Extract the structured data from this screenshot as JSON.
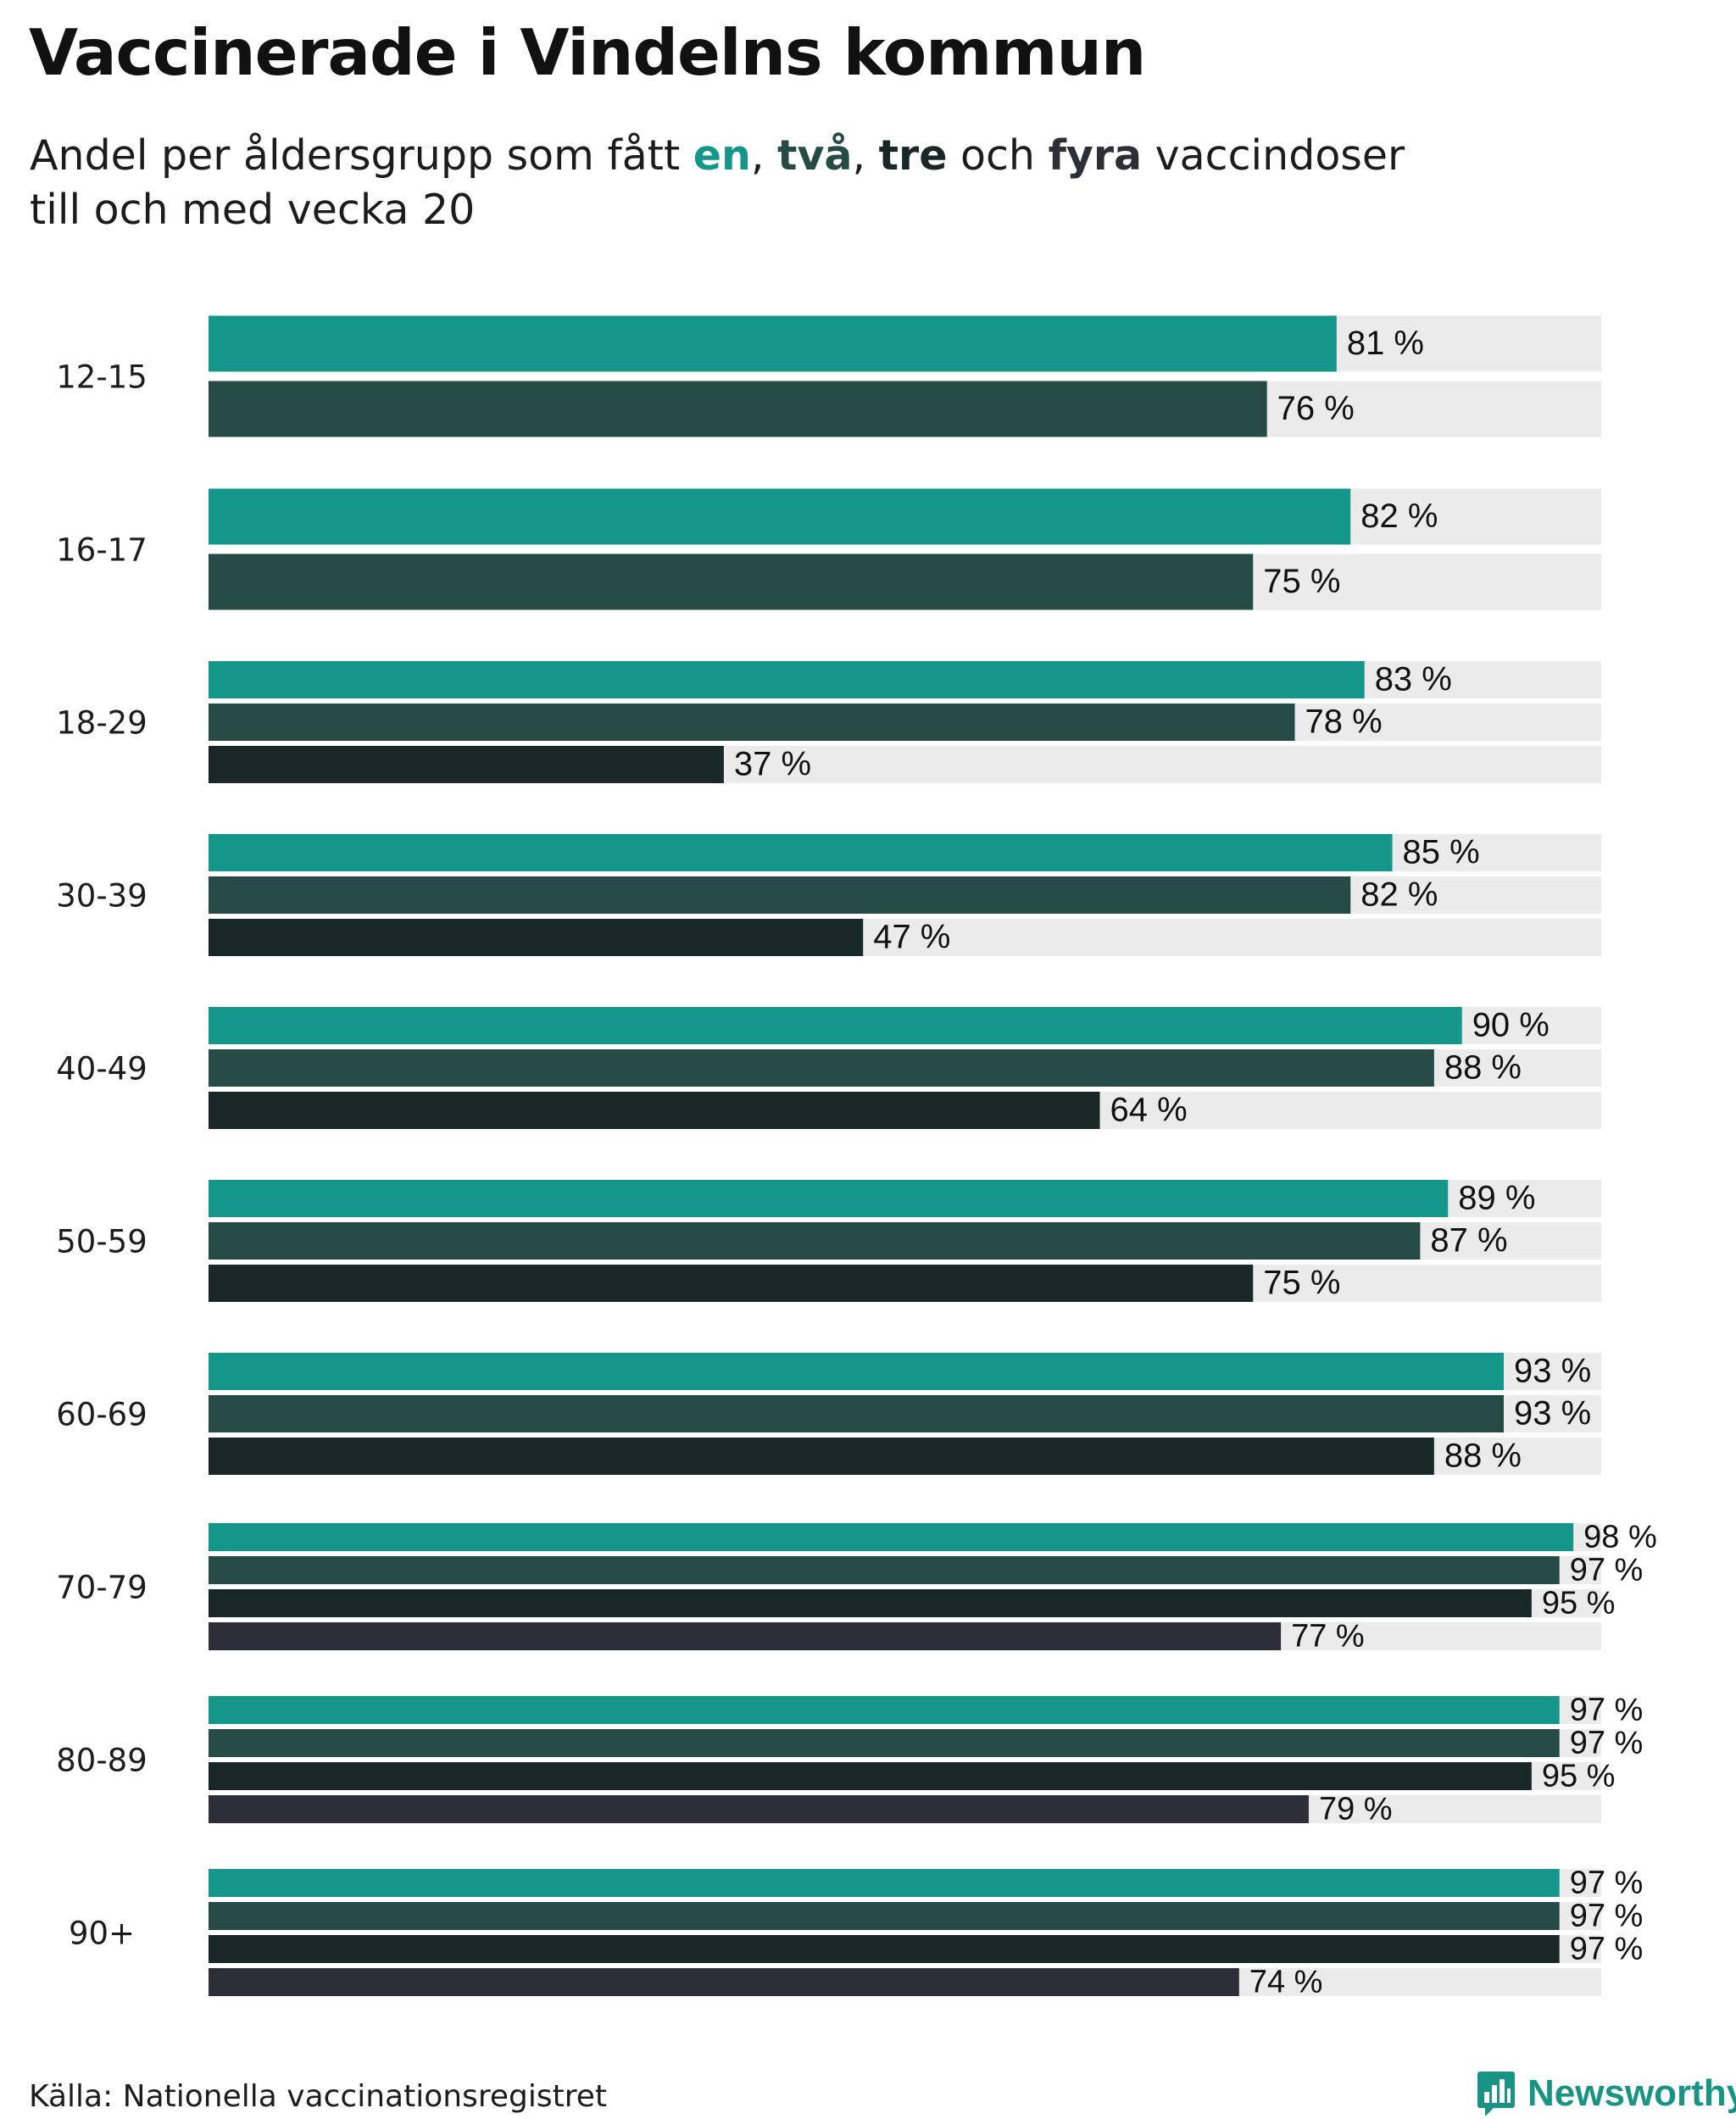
{
  "title": "Vaccinerade i Vindelns kommun",
  "subtitle": {
    "prefix": "Andel per åldersgrupp som fått ",
    "dose1": "en",
    "sep1": ", ",
    "dose2": "två",
    "sep2": ", ",
    "dose3": "tre",
    "conj": " och ",
    "dose4": "fyra",
    "suffix": " vaccindoser",
    "line2": "till och med vecka 20"
  },
  "colors": {
    "dose1": "#14968a",
    "dose2": "#264b47",
    "dose3": "#172826",
    "dose4": "#2e2e38",
    "track": "#ebebeb"
  },
  "source": "Källa: Nationella vaccinationsregistret",
  "brand": "Newsworthy",
  "chart_data": {
    "type": "bar",
    "orientation": "horizontal",
    "xlim": [
      0,
      100
    ],
    "value_suffix": " %",
    "categories": [
      "12-15",
      "16-17",
      "18-29",
      "30-39",
      "40-49",
      "50-59",
      "60-69",
      "70-79",
      "80-89",
      "90+"
    ],
    "series": [
      {
        "name": "en",
        "values": [
          81,
          82,
          83,
          85,
          90,
          89,
          93,
          98,
          97,
          97
        ]
      },
      {
        "name": "två",
        "values": [
          76,
          75,
          78,
          82,
          88,
          87,
          93,
          97,
          97,
          97
        ]
      },
      {
        "name": "tre",
        "values": [
          null,
          null,
          37,
          47,
          64,
          75,
          88,
          95,
          95,
          97
        ]
      },
      {
        "name": "fyra",
        "values": [
          null,
          null,
          null,
          null,
          null,
          null,
          null,
          77,
          79,
          74
        ]
      }
    ]
  }
}
